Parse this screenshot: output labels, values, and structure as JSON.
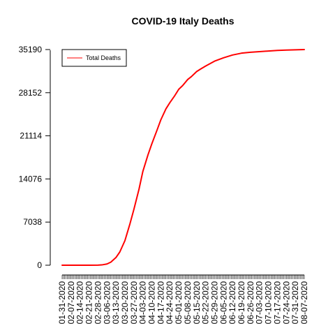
{
  "chart_data": {
    "type": "line",
    "title": "COVID-19 Italy Deaths",
    "xlabel": "",
    "ylabel": "",
    "ylim": [
      0,
      35190
    ],
    "y_ticks": [
      0,
      7038,
      14076,
      21114,
      28152,
      35190
    ],
    "y_tick_labels": [
      "0",
      "7038",
      "14076",
      "21114",
      "28152",
      "35190"
    ],
    "x_range": [
      "2020-01-31",
      "2020-08-07"
    ],
    "x_tick_labels": [
      "01-31-2020",
      "02-07-2020",
      "02-14-2020",
      "02-21-2020",
      "02-28-2020",
      "03-06-2020",
      "03-13-2020",
      "03-20-2020",
      "03-27-2020",
      "04-03-2020",
      "04-10-2020",
      "04-17-2020",
      "04-24-2020",
      "05-01-2020",
      "05-08-2020",
      "05-15-2020",
      "05-22-2020",
      "05-29-2020",
      "06-05-2020",
      "06-12-2020",
      "06-19-2020",
      "06-26-2020",
      "07-03-2020",
      "07-10-2020",
      "07-17-2020",
      "07-24-2020",
      "07-31-2020",
      "08-07-2020"
    ],
    "grid": false,
    "legend_position": "top-left",
    "series": [
      {
        "name": "Total Deaths",
        "color": "#ff0000",
        "x": [
          "2020-01-31",
          "2020-02-07",
          "2020-02-14",
          "2020-02-21",
          "2020-02-28",
          "2020-03-02",
          "2020-03-06",
          "2020-03-09",
          "2020-03-13",
          "2020-03-16",
          "2020-03-20",
          "2020-03-24",
          "2020-03-27",
          "2020-03-31",
          "2020-04-03",
          "2020-04-07",
          "2020-04-10",
          "2020-04-14",
          "2020-04-17",
          "2020-04-21",
          "2020-04-24",
          "2020-04-28",
          "2020-05-01",
          "2020-05-04",
          "2020-05-08",
          "2020-05-11",
          "2020-05-15",
          "2020-05-18",
          "2020-05-22",
          "2020-05-29",
          "2020-06-05",
          "2020-06-12",
          "2020-06-19",
          "2020-06-26",
          "2020-07-03",
          "2020-07-10",
          "2020-07-17",
          "2020-07-24",
          "2020-07-31",
          "2020-08-07"
        ],
        "y": [
          0,
          0,
          0,
          0,
          20,
          50,
          200,
          500,
          1250,
          2150,
          4000,
          6800,
          9100,
          12400,
          15300,
          18000,
          19800,
          22000,
          23700,
          25500,
          26500,
          27700,
          28700,
          29300,
          30300,
          30800,
          31600,
          32000,
          32500,
          33300,
          33850,
          34300,
          34600,
          34750,
          34850,
          34950,
          35050,
          35100,
          35150,
          35190
        ]
      }
    ]
  }
}
